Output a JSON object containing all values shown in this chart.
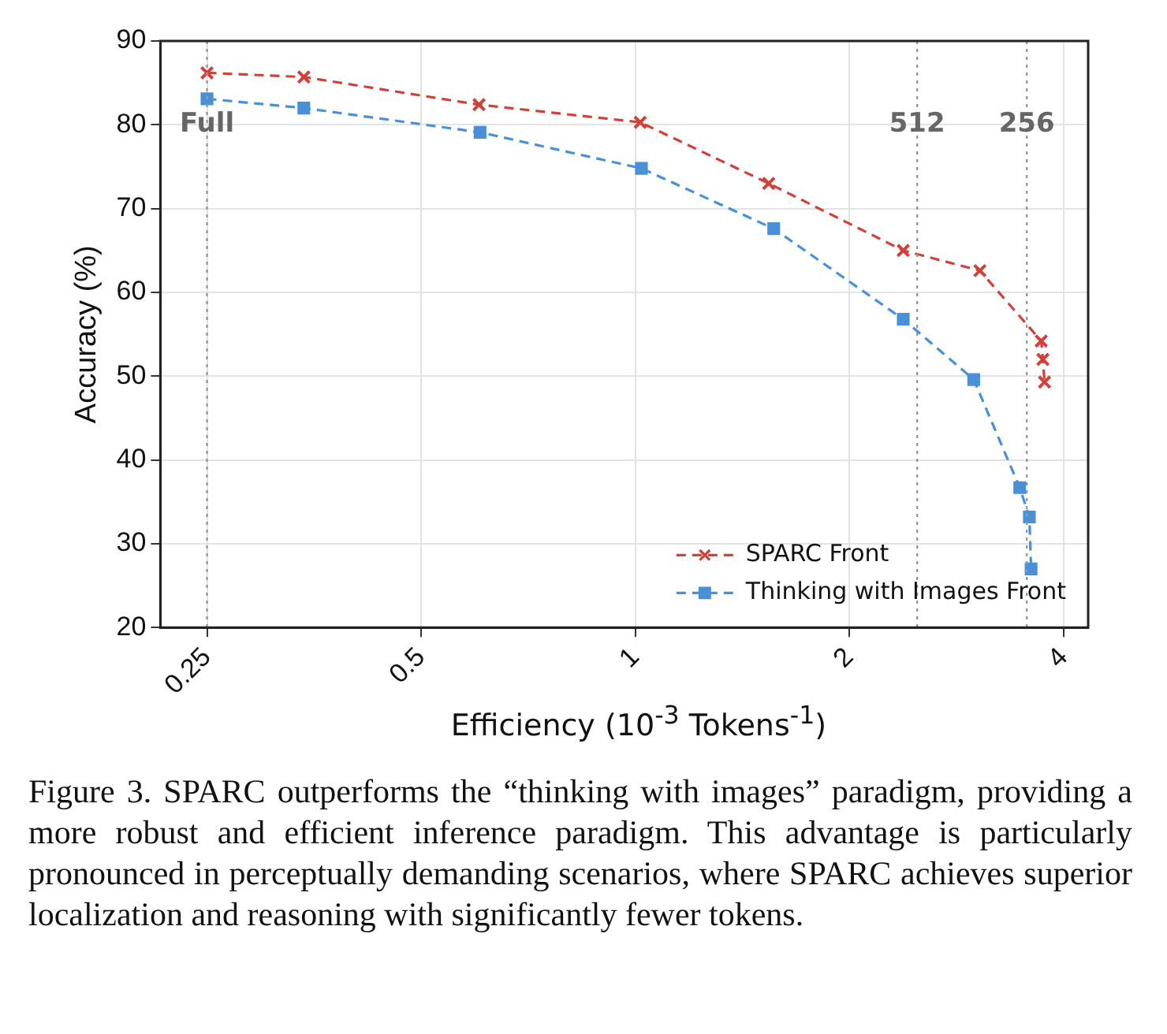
{
  "chart_data": {
    "type": "line",
    "xlabel": "Efficiency (10$^{-3}$ Tokens$^{-1}$)",
    "ylabel": "Accuracy (%)",
    "log": "x",
    "xlim": [
      0.215,
      4.33
    ],
    "xticks": [
      0.25,
      0.5,
      1,
      2,
      4
    ],
    "ylim": [
      20,
      90
    ],
    "yticks": [
      20,
      30,
      40,
      50,
      60,
      70,
      80,
      90
    ],
    "grid": true,
    "legend": "bottom right",
    "line_style": "dashed",
    "series": [
      {
        "name": "SPARC Front",
        "color": "#d0413a",
        "marker": "cross",
        "x": [
          0.25,
          0.342,
          0.603,
          1.016,
          1.54,
          2.38,
          3.05,
          3.72,
          3.74,
          3.76
        ],
        "values": [
          86.2,
          85.7,
          82.4,
          80.3,
          73,
          65,
          62.6,
          54.2,
          52,
          49.3
        ]
      },
      {
        "name": "Thinking with Images Front",
        "color": "#4a90d9",
        "marker": "square",
        "x": [
          0.25,
          0.342,
          0.605,
          1.02,
          1.565,
          2.38,
          2.99,
          3.47,
          3.58,
          3.6
        ],
        "values": [
          83.1,
          82,
          79.1,
          74.8,
          67.6,
          56.8,
          49.6,
          36.7,
          33.2,
          27
        ]
      }
    ],
    "ref_lines": [
      {
        "axis": "x",
        "value": 0.25,
        "color": "#999999",
        "line_style": "dotted"
      },
      {
        "axis": "x",
        "value": 2.49,
        "color": "#999999",
        "line_style": "dotted"
      },
      {
        "axis": "x",
        "value": 3.55,
        "color": "#999999",
        "line_style": "dotted"
      }
    ],
    "annotations": [
      {
        "text": "Full",
        "x": 0.25,
        "y": 80
      },
      {
        "text": "512",
        "x": 2.49,
        "y": 80
      },
      {
        "text": "256",
        "x": 3.55,
        "y": 80
      },
      "Figure 3. SPARC outperforms the “thinking with images” paradigm, providing a more robust and efficient inference paradigm. This advantage is particularly pronounced in perceptually demanding scenarios, where SPARC achieves superior localization and reasoning with significantly fewer tokens."
    ]
  }
}
